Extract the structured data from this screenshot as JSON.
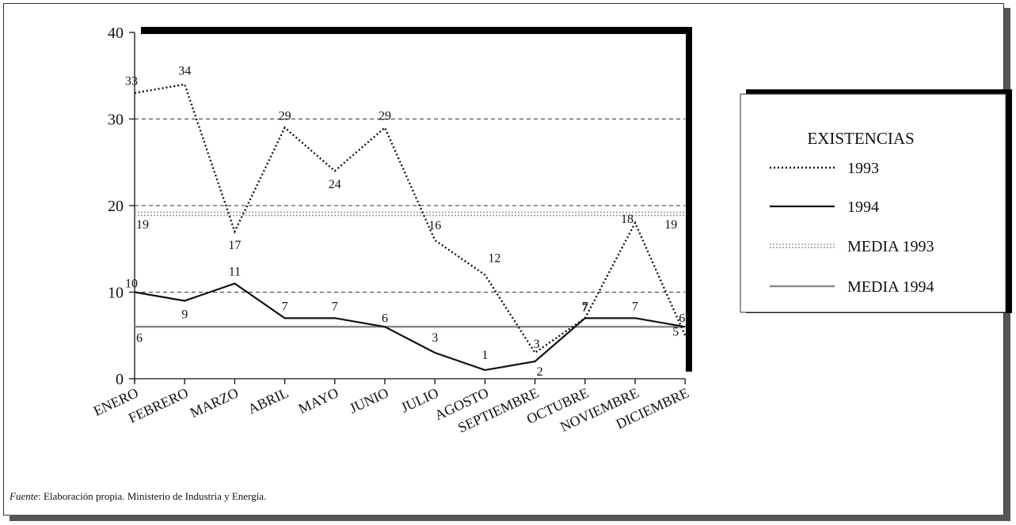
{
  "chart_data": {
    "type": "line",
    "categories": [
      "ENERO",
      "FEBRERO",
      "MARZO",
      "ABRIL",
      "MAYO",
      "JUNIO",
      "JULIO",
      "AGOSTO",
      "SEPTIEMBRE",
      "OCTUBRE",
      "NOVIEMBRE",
      "DICIEMBRE"
    ],
    "series": [
      {
        "name": "1993",
        "style": "dotted",
        "values": [
          33,
          34,
          17,
          29,
          24,
          29,
          16,
          12,
          3,
          7,
          18,
          5
        ]
      },
      {
        "name": "1994",
        "style": "solid",
        "values": [
          10,
          9,
          11,
          7,
          7,
          6,
          3,
          1,
          2,
          7,
          7,
          6
        ]
      }
    ],
    "reference_lines": [
      {
        "name": "MEDIA 1993",
        "value": 19,
        "style": "gray-dotted",
        "labels": [
          "19",
          "19"
        ]
      },
      {
        "name": "MEDIA 1994",
        "value": 6,
        "style": "gray-solid",
        "labels": [
          "6"
        ]
      }
    ],
    "yticks": [
      "0",
      "10",
      "20",
      "30",
      "40"
    ],
    "ylim": [
      0,
      40
    ],
    "grid": "dashed horizontal at 10, 20, 30",
    "legend": {
      "title": "EXISTENCIAS",
      "position": "right"
    }
  },
  "source": {
    "label": "Fuente",
    "text": ": Elaboración propia. Ministerio de Industria y Energía."
  },
  "colors": {
    "series_1993": "#111111",
    "series_1994": "#111111",
    "media_1993": "#9a9a9a",
    "media_1994": "#8a8a8a",
    "frame_bar": "#000000"
  }
}
